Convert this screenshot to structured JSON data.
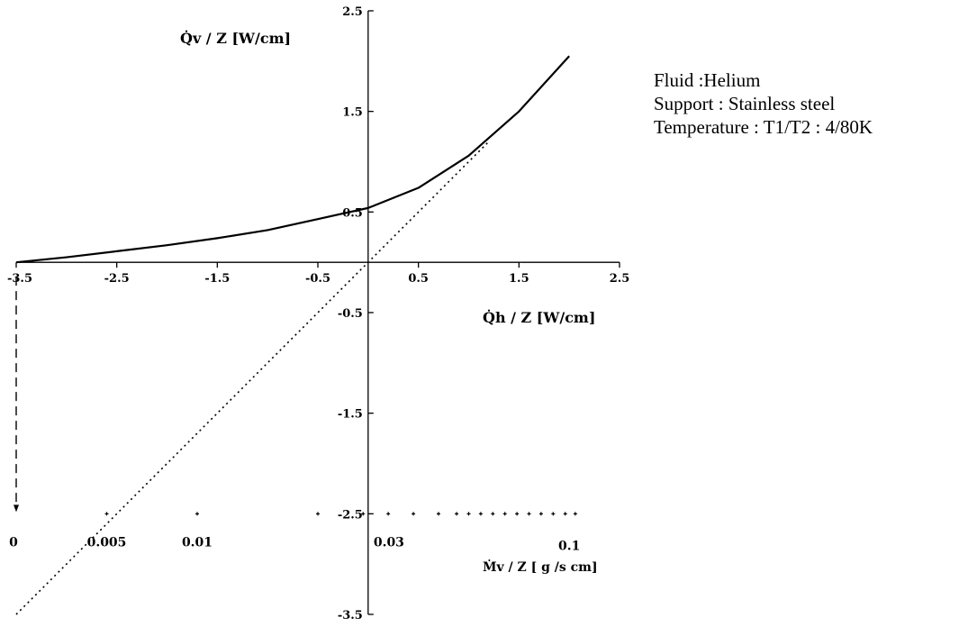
{
  "chart_data": {
    "type": "line",
    "title": "",
    "xlabel": "Q̇h / Z  [W/cm]",
    "ylabel": "Q̇v / Z  [W/cm]",
    "xlim": [
      -3.5,
      2.5
    ],
    "ylim": [
      -3.5,
      2.5
    ],
    "x_ticks": [
      "-3.5",
      "-2.5",
      "-1.5",
      "-0.5",
      "0.5",
      "1.5",
      "2.5"
    ],
    "y_ticks": [
      "2.5",
      "1.5",
      "0.5",
      "-0.5",
      "-1.5",
      "-2.5",
      "-3.5"
    ],
    "series": [
      {
        "style": "solid",
        "x": [
          -3.5,
          -3.0,
          -2.5,
          -2.0,
          -1.5,
          -1.0,
          -0.5,
          0.0,
          0.5,
          1.0,
          1.5,
          2.0
        ],
        "y": [
          0.0,
          0.05,
          0.11,
          0.17,
          0.24,
          0.32,
          0.43,
          0.54,
          0.74,
          1.06,
          1.5,
          2.05
        ]
      },
      {
        "style": "dotted",
        "x": [
          -3.5,
          1.2
        ],
        "y": [
          -3.5,
          1.2
        ]
      }
    ],
    "mass_flow_scale": {
      "label": "Ṁv / Z [ g /s cm]",
      "tick_labels": [
        "0",
        "0.005",
        "0.01",
        "0.03",
        "0.1"
      ],
      "tick_x": [
        -3.5,
        -2.6,
        -1.7,
        0.0,
        2.0
      ],
      "marker_x": [
        -2.6,
        -1.7,
        -0.5,
        -0.05,
        0.2,
        0.45,
        0.7,
        0.88,
        1.0,
        1.12,
        1.24,
        1.36,
        1.48,
        1.6,
        1.72,
        1.84,
        1.96,
        2.06
      ],
      "marker_y": -2.5
    },
    "drop_line": {
      "style": "dashed",
      "x": -3.5,
      "y_from": 0.0,
      "y_to": -2.5
    }
  },
  "annotation": {
    "line1": "Fluid :Helium",
    "line2": "Support : Stainless steel",
    "line3": "Temperature : T1/T2 : 4/80K"
  }
}
